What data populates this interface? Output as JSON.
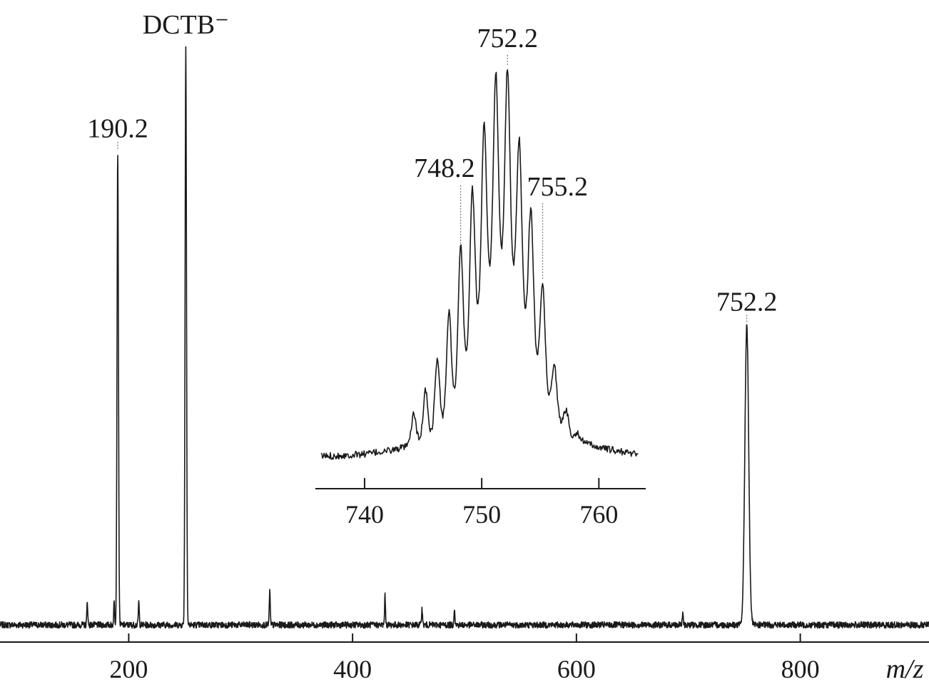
{
  "chart_data": [
    {
      "type": "line",
      "name": "main-spectrum",
      "title": "",
      "xlabel": "m/z",
      "ylabel": "",
      "xlim": [
        85,
        915
      ],
      "ylim": [
        0,
        100
      ],
      "xticks": [
        200,
        400,
        600,
        800
      ],
      "xtick_labels": [
        "200",
        "400",
        "600",
        "800"
      ],
      "peaks": [
        {
          "x": 190.2,
          "y": 82,
          "label": "190.2"
        },
        {
          "x": 251.0,
          "y": 100,
          "label": "DCTB⁻"
        },
        {
          "x": 752.2,
          "y": 52,
          "label": "752.2"
        }
      ],
      "minor_peaks": [
        {
          "x": 163,
          "y": 4
        },
        {
          "x": 187,
          "y": 4
        },
        {
          "x": 209,
          "y": 4
        },
        {
          "x": 326,
          "y": 6
        },
        {
          "x": 429,
          "y": 5
        },
        {
          "x": 462,
          "y": 3
        },
        {
          "x": 491,
          "y": 3
        },
        {
          "x": 695,
          "y": 2
        }
      ]
    },
    {
      "type": "line",
      "name": "inset-isotope-pattern",
      "title": "",
      "xlabel": "",
      "ylabel": "",
      "xlim": [
        735.8,
        764
      ],
      "ylim": [
        0,
        100
      ],
      "xticks": [
        740,
        750,
        760
      ],
      "xtick_labels": [
        "740",
        "750",
        "760"
      ],
      "peaks": [
        {
          "x": 744.2,
          "y": 11
        },
        {
          "x": 745.2,
          "y": 17
        },
        {
          "x": 746.2,
          "y": 25
        },
        {
          "x": 747.2,
          "y": 37
        },
        {
          "x": 748.2,
          "y": 54,
          "label": "748.2"
        },
        {
          "x": 749.2,
          "y": 69
        },
        {
          "x": 750.2,
          "y": 86
        },
        {
          "x": 751.2,
          "y": 99
        },
        {
          "x": 752.2,
          "y": 100,
          "label": "752.2"
        },
        {
          "x": 753.2,
          "y": 82
        },
        {
          "x": 754.2,
          "y": 64
        },
        {
          "x": 755.2,
          "y": 45,
          "label": "755.2"
        },
        {
          "x": 756.2,
          "y": 24
        },
        {
          "x": 757.2,
          "y": 12
        },
        {
          "x": 758.2,
          "y": 6
        }
      ]
    }
  ]
}
